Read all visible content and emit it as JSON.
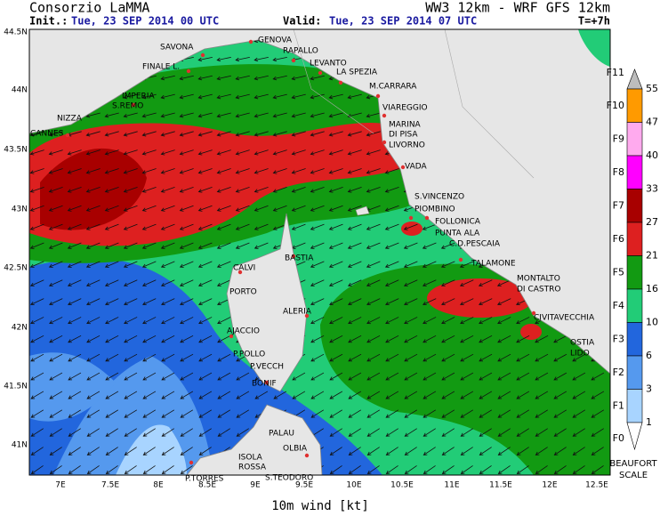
{
  "header": {
    "org": "Consorzio LaMMA",
    "model": "WW3 12km - WRF GFS 12km",
    "init_label": "Init.:",
    "init": "Tue, 23 SEP 2014  00 UTC",
    "valid_label": "Valid:",
    "valid": "Tue, 23 SEP 2014  07 UTC",
    "lead": "T=+7h"
  },
  "lat_labels": [
    "44.5N",
    "44N",
    "43.5N",
    "43N",
    "42.5N",
    "42N",
    "41.5N",
    "41N"
  ],
  "lon_labels": [
    "7E",
    "7.5E",
    "8E",
    "8.5E",
    "9E",
    "9.5E",
    "10E",
    "10.5E",
    "11E",
    "11.5E",
    "12E",
    "12.5E"
  ],
  "axis_label": "10m wind [kt]",
  "colorbar": {
    "values": [
      55,
      47,
      40,
      33,
      27,
      21,
      16,
      10,
      6,
      3,
      1
    ],
    "beaufort": [
      "F11",
      "F10",
      "F9",
      "F8",
      "F7",
      "F6",
      "F5",
      "F4",
      "F3",
      "F2",
      "F1",
      "F0"
    ],
    "colors": [
      "#ff9a00",
      "#ffaaee",
      "#ff00ff",
      "#a80000",
      "#dd2020",
      "#129a12",
      "#22cc77",
      "#2266dd",
      "#5599ee",
      "#a8d4ff"
    ],
    "over_color": "#bdbdbd",
    "under_color": "#ffffff",
    "caption": [
      "BEAUFORT",
      "SCALE"
    ]
  },
  "cities": [
    "SAVONA",
    "GENOVA",
    "RAPALLO",
    "FINALE L.",
    "LEVANTO",
    "LA SPEZIA",
    "IMPERIA",
    "S.REMO",
    "M.CARRARA",
    "NIZZA",
    "VIAREGGIO",
    "CANNES",
    "MARINA",
    "DI PISA",
    "LIVORNO",
    "VADA",
    "S.VINCENZO",
    "PIOMBINO",
    "FOLLONICA",
    "PUNTA ALA",
    "C.D.PESCAIA",
    "BASTIA",
    "CALVI",
    "TALAMONE",
    "MONTALTO",
    "DI CASTRO",
    "PORTO",
    "ALERIA",
    "CIVITAVECCHIA",
    "AJACCIO",
    "OSTIA",
    "LIDO",
    "P.POLLO",
    "P.VECCH",
    "BONIF",
    "PALAU",
    "OLBIA",
    "ISOLA",
    "ROSSA",
    "P.TORRES",
    "S.TEODORO"
  ]
}
